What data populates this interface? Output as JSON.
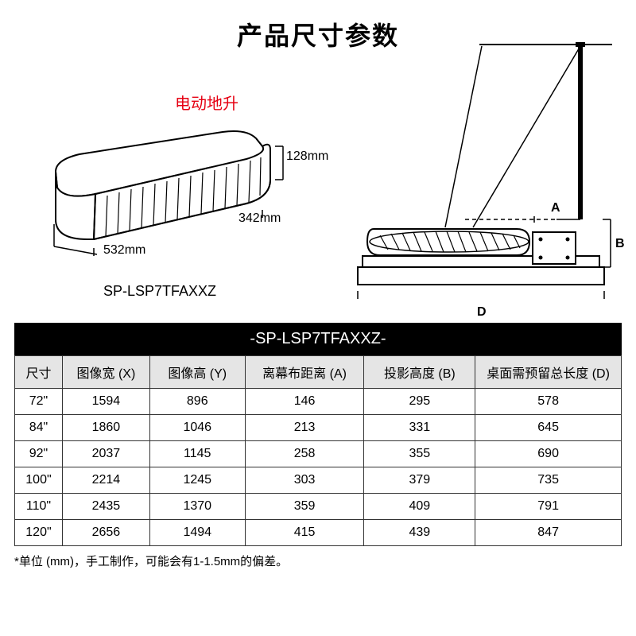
{
  "title": "产品尺寸参数",
  "annotation_red": "电动地升",
  "model": "SP-LSP7TFAXXZ",
  "dimensions": {
    "width_label": "532mm",
    "depth_label": "342mm",
    "height_label": "128mm",
    "a_label": "A",
    "b_label": "B",
    "d_label": "D"
  },
  "table": {
    "title": "-SP-LSP7TFAXXZ-",
    "columns": [
      "尺寸",
      "图像宽 (X)",
      "图像高 (Y)",
      "离幕布距离 (A)",
      "投影高度 (B)",
      "桌面需预留总长度 (D)"
    ],
    "col_widths": [
      "60px",
      "110px",
      "120px",
      "150px",
      "140px",
      "184px"
    ],
    "rows": [
      [
        "72\"",
        "1594",
        "896",
        "146",
        "295",
        "578"
      ],
      [
        "84\"",
        "1860",
        "1046",
        "213",
        "331",
        "645"
      ],
      [
        "92\"",
        "2037",
        "1145",
        "258",
        "355",
        "690"
      ],
      [
        "100\"",
        "2214",
        "1245",
        "303",
        "379",
        "735"
      ],
      [
        "110\"",
        "2435",
        "1370",
        "359",
        "409",
        "791"
      ],
      [
        "120\"",
        "2656",
        "1494",
        "415",
        "439",
        "847"
      ]
    ]
  },
  "footnote": "*单位 (mm)，手工制作，可能会有1-1.5mm的偏差。",
  "colors": {
    "red": "#e60012",
    "header_bg": "#e5e5e5",
    "title_bg": "#000000",
    "border": "#333333"
  }
}
